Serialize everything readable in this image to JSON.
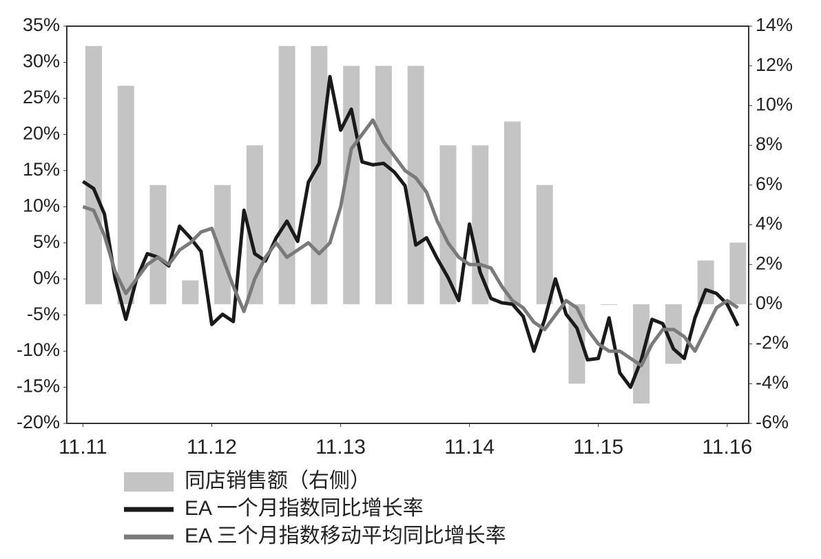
{
  "chart_data": {
    "type": "combo",
    "xlim": [
      -1.5,
      62
    ],
    "xticks": [
      {
        "value": 0,
        "label": "11.11"
      },
      {
        "value": 12,
        "label": "11.12"
      },
      {
        "value": 24,
        "label": "11.13"
      },
      {
        "value": 36,
        "label": "11.14"
      },
      {
        "value": 48,
        "label": "11.15"
      },
      {
        "value": 60,
        "label": "11.16"
      }
    ],
    "ylim": [
      -20,
      35
    ],
    "yticks": [
      {
        "value": 35,
        "label": "35%"
      },
      {
        "value": 30,
        "label": "30%"
      },
      {
        "value": 25,
        "label": "25%"
      },
      {
        "value": 20,
        "label": "20%"
      },
      {
        "value": 15,
        "label": "15%"
      },
      {
        "value": 10,
        "label": "10%"
      },
      {
        "value": 5,
        "label": "5%"
      },
      {
        "value": 0,
        "label": "0%"
      },
      {
        "value": -5,
        "label": "-5%"
      },
      {
        "value": -10,
        "label": "-10%"
      },
      {
        "value": -15,
        "label": "-15%"
      },
      {
        "value": -20,
        "label": "-20%"
      }
    ],
    "y2lim": [
      -6,
      14
    ],
    "y2ticks": [
      {
        "value": 14,
        "label": "14%"
      },
      {
        "value": 12,
        "label": "12%"
      },
      {
        "value": 10,
        "label": "10%"
      },
      {
        "value": 8,
        "label": "8%"
      },
      {
        "value": 6,
        "label": "6%"
      },
      {
        "value": 4,
        "label": "4%"
      },
      {
        "value": 2,
        "label": "2%"
      },
      {
        "value": 0,
        "label": "0%"
      },
      {
        "value": -2,
        "label": "-2%"
      },
      {
        "value": -4,
        "label": "-4%"
      },
      {
        "value": -6,
        "label": "-6%"
      }
    ],
    "series": [
      {
        "name": "同店销售额（右侧）",
        "type": "bar",
        "axis": "y2",
        "color": "#c4c4c4",
        "values": [
          null,
          13,
          null,
          null,
          11,
          null,
          null,
          6,
          null,
          null,
          1.2,
          null,
          null,
          6,
          null,
          null,
          8,
          null,
          null,
          13,
          null,
          null,
          13,
          null,
          null,
          12,
          null,
          null,
          12,
          null,
          null,
          12,
          null,
          null,
          8,
          null,
          null,
          8,
          null,
          null,
          9.2,
          null,
          null,
          6,
          null,
          null,
          -4,
          null,
          null,
          0,
          null,
          null,
          -5,
          null,
          null,
          -3,
          null,
          null,
          2.2,
          null,
          null,
          3.1
        ]
      },
      {
        "name": "EA 一个月指数同比增长率",
        "type": "line",
        "color": "#1a1a1a",
        "values": [
          13.5,
          12.5,
          9,
          0,
          -5.6,
          0,
          3.5,
          3,
          1.8,
          7.3,
          5.7,
          3.8,
          -6.3,
          -4.9,
          -5.9,
          9.5,
          3.5,
          2.5,
          5.7,
          8,
          5.2,
          13.4,
          16,
          28,
          20.6,
          23.5,
          16.2,
          15.8,
          16,
          14.8,
          12.9,
          4.7,
          5.7,
          2.8,
          0.2,
          -3,
          7.6,
          0.9,
          -2.7,
          -3.3,
          -3.5,
          -5.2,
          -10,
          -5.6,
          0,
          -4.9,
          -6.8,
          -11.2,
          -11,
          -5.4,
          -13,
          -15,
          -11.2,
          -5.6,
          -6.2,
          -9.7,
          -11,
          -5.4,
          -1.5,
          -2,
          -3.5,
          -6.5
        ]
      },
      {
        "name": "EA 三个月指数移动平均同比增长率",
        "type": "line",
        "color": "#7a7a7a",
        "values": [
          10,
          9.5,
          6,
          1,
          -2,
          0,
          2,
          3,
          2,
          4,
          5,
          6.5,
          7,
          3,
          -1,
          -4.5,
          0,
          3,
          5,
          3,
          4,
          5,
          3.5,
          5,
          10,
          18,
          20,
          22,
          19,
          17,
          15,
          14,
          12,
          8,
          5,
          3,
          2,
          2,
          1.5,
          -1,
          -3,
          -4,
          -6,
          -7,
          -5,
          -3,
          -4,
          -7,
          -9,
          -10,
          -10,
          -11,
          -12,
          -9,
          -7,
          -7,
          -8,
          -10,
          -7,
          -4,
          -3,
          -4
        ]
      }
    ]
  }
}
